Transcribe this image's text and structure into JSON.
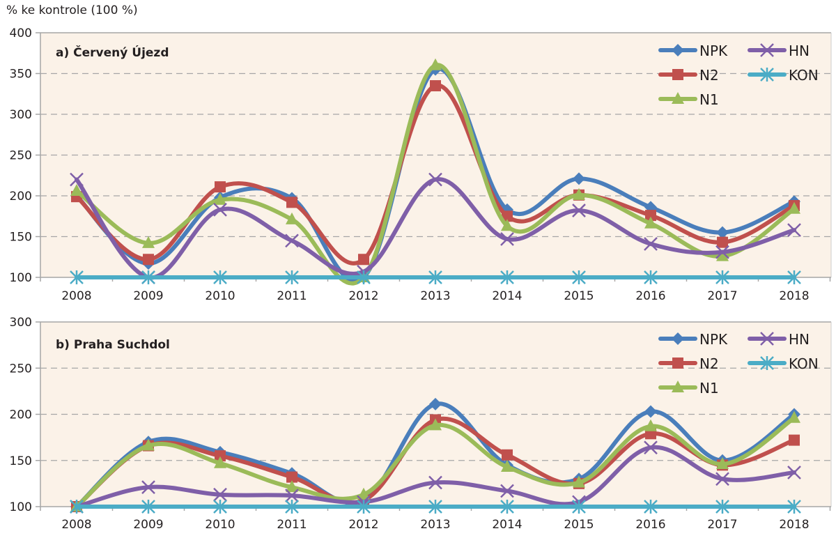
{
  "y_axis_label": "% ke kontrole (100 %)",
  "series_styles": {
    "NPK": {
      "color": "#4a7ebb",
      "marker": "diamond"
    },
    "N2": {
      "color": "#c0504d",
      "marker": "square"
    },
    "N1": {
      "color": "#9bbb59",
      "marker": "triangle"
    },
    "HN": {
      "color": "#7f5fa8",
      "marker": "x"
    },
    "KON": {
      "color": "#4bacc6",
      "marker": "star"
    }
  },
  "colors": {
    "plot_background": "#fbf2e8",
    "gridline": "#a6a6a6",
    "axis": "#a6a6a6"
  },
  "chart_data": [
    {
      "type": "line",
      "title": "a) Červený Újezd",
      "xlabel": "",
      "ylabel": "% ke kontrole (100 %)",
      "categories": [
        "2008",
        "2009",
        "2010",
        "2011",
        "2012",
        "2013",
        "2014",
        "2015",
        "2016",
        "2017",
        "2018"
      ],
      "ylim": [
        100,
        400
      ],
      "yticks": [
        100,
        150,
        200,
        250,
        300,
        350,
        400
      ],
      "grid": true,
      "legend_position": "top-right",
      "legend": [
        "NPK",
        "N2",
        "N1",
        "HN",
        "KON"
      ],
      "series": [
        {
          "name": "NPK",
          "values": [
            200,
            117,
            198,
            197,
            100,
            355,
            183,
            221,
            186,
            155,
            193
          ]
        },
        {
          "name": "N2",
          "values": [
            199,
            122,
            211,
            192,
            122,
            335,
            175,
            201,
            176,
            143,
            188
          ]
        },
        {
          "name": "N1",
          "values": [
            206,
            142,
            195,
            171,
            100,
            360,
            163,
            201,
            166,
            126,
            184
          ]
        },
        {
          "name": "HN",
          "values": [
            220,
            100,
            183,
            145,
            107,
            220,
            147,
            182,
            141,
            131,
            158
          ]
        },
        {
          "name": "KON",
          "values": [
            100,
            100,
            100,
            100,
            100,
            100,
            100,
            100,
            100,
            100,
            100
          ]
        }
      ]
    },
    {
      "type": "line",
      "title": "b) Praha Suchdol",
      "xlabel": "",
      "ylabel": "% ke kontrole (100 %)",
      "categories": [
        "2008",
        "2009",
        "2010",
        "2011",
        "2012",
        "2013",
        "2014",
        "2015",
        "2016",
        "2017",
        "2018"
      ],
      "ylim": [
        100,
        300
      ],
      "yticks": [
        100,
        150,
        200,
        250,
        300
      ],
      "grid": true,
      "legend_position": "top-right",
      "legend": [
        "NPK",
        "N2",
        "N1",
        "HN",
        "KON"
      ],
      "series": [
        {
          "name": "NPK",
          "values": [
            100,
            170,
            159,
            136,
            107,
            211,
            145,
            130,
            203,
            150,
            200
          ]
        },
        {
          "name": "N2",
          "values": [
            100,
            166,
            155,
            132,
            107,
            194,
            156,
            125,
            179,
            145,
            172
          ]
        },
        {
          "name": "N1",
          "values": [
            100,
            166,
            147,
            121,
            113,
            188,
            143,
            126,
            187,
            146,
            196
          ]
        },
        {
          "name": "HN",
          "values": [
            100,
            121,
            113,
            112,
            105,
            126,
            117,
            105,
            164,
            130,
            137
          ]
        },
        {
          "name": "KON",
          "values": [
            100,
            100,
            100,
            100,
            100,
            100,
            100,
            100,
            100,
            100,
            100
          ]
        }
      ]
    }
  ]
}
